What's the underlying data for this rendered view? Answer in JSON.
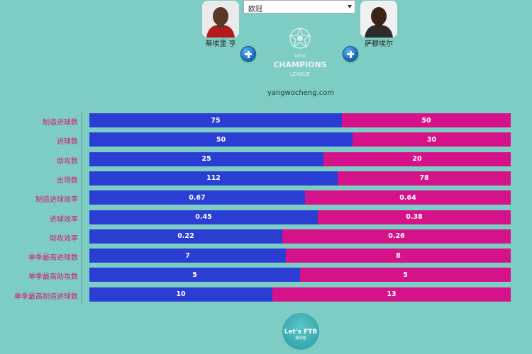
{
  "header": {
    "left_player": "蒂埃里 亨",
    "right_player": "萨穆埃尔",
    "competition_select": "欧冠",
    "site": "yangwocheng.com",
    "logo_text": [
      "UEFA",
      "CHAMPIONS",
      "LEAGUE"
    ],
    "bottom_logo": {
      "title": "Let's FTB",
      "subtitle": "踢球者"
    }
  },
  "colors": {
    "background": "#7ecdc4",
    "left_bar": "#2a3ed4",
    "right_bar": "#d6128a",
    "label": "#d41878"
  },
  "chart_data": {
    "type": "bar",
    "stacked": true,
    "orientation": "horizontal",
    "categories": [
      "制造进球数",
      "进球数",
      "助攻数",
      "出场数",
      "制造进球效率",
      "进球效率",
      "助攻效率",
      "单季最高进球数",
      "单季最高助攻数",
      "单季最高制造进球数"
    ],
    "series": [
      {
        "name": "蒂埃里 亨",
        "values": [
          "75",
          "50",
          "25",
          "112",
          "0.67",
          "0.45",
          "0.22",
          "7",
          "5",
          "10"
        ]
      },
      {
        "name": "萨穆埃尔",
        "values": [
          "50",
          "30",
          "20",
          "78",
          "0.64",
          "0.38",
          "0.26",
          "8",
          "5",
          "13"
        ]
      }
    ]
  }
}
